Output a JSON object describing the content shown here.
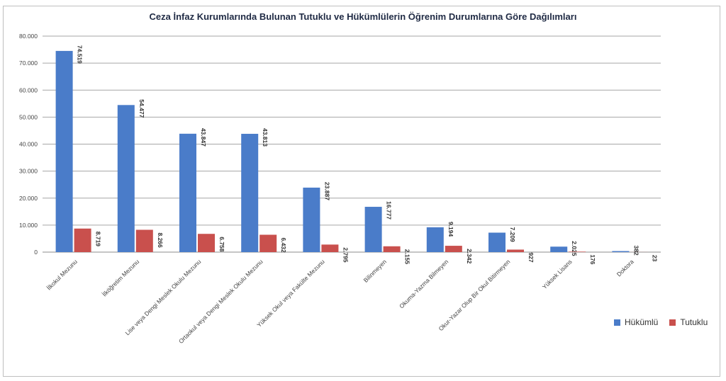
{
  "chart_data": {
    "type": "bar",
    "title": "Ceza İnfaz Kurumlarında Bulunan Tutuklu ve Hükümlülerin Öğrenim Durumlarına Göre Dağılımları",
    "categories": [
      "İlkokul Mezunu",
      "İlköğretim Mezunu",
      "Lise veya Dengi Meslek Okulu Mezunu",
      "Ortaokul veya Dengi Meslek Okulu Mezunu",
      "Yüksek Okul veya Fakülte Mezunu",
      "Bilinmeyen",
      "Okuma-Yazma Bilmeyen",
      "Okur-Yazar Olup Bir Okul Bitirmeyen",
      "Yüksek Lisans",
      "Doktora"
    ],
    "series": [
      {
        "name": "Hükümlü",
        "color": "#4a7cc9",
        "values": [
          74519,
          54477,
          43847,
          43813,
          23887,
          16777,
          9194,
          7209,
          2025,
          382
        ],
        "labels": [
          "74.519",
          "54.477",
          "43.847",
          "43.813",
          "23.887",
          "16.777",
          "9.194",
          "7.209",
          "2.025",
          "382"
        ]
      },
      {
        "name": "Tutuklu",
        "color": "#c9504d",
        "values": [
          8719,
          8266,
          6758,
          6432,
          2795,
          2155,
          2342,
          927,
          176,
          23
        ],
        "labels": [
          "8.719",
          "8.266",
          "6.758",
          "6.432",
          "2.795",
          "2.155",
          "2.342",
          "927",
          "176",
          "23"
        ]
      }
    ],
    "ylim": [
      0,
      80000
    ],
    "yticks": [
      0,
      10000,
      20000,
      30000,
      40000,
      50000,
      60000,
      70000,
      80000
    ],
    "ytick_labels": [
      "0",
      "10.000",
      "20.000",
      "30.000",
      "40.000",
      "50.000",
      "60.000",
      "70.000",
      "80.000"
    ],
    "grid": true,
    "legend_position": "bottom-right",
    "xlabel": "",
    "ylabel": ""
  }
}
